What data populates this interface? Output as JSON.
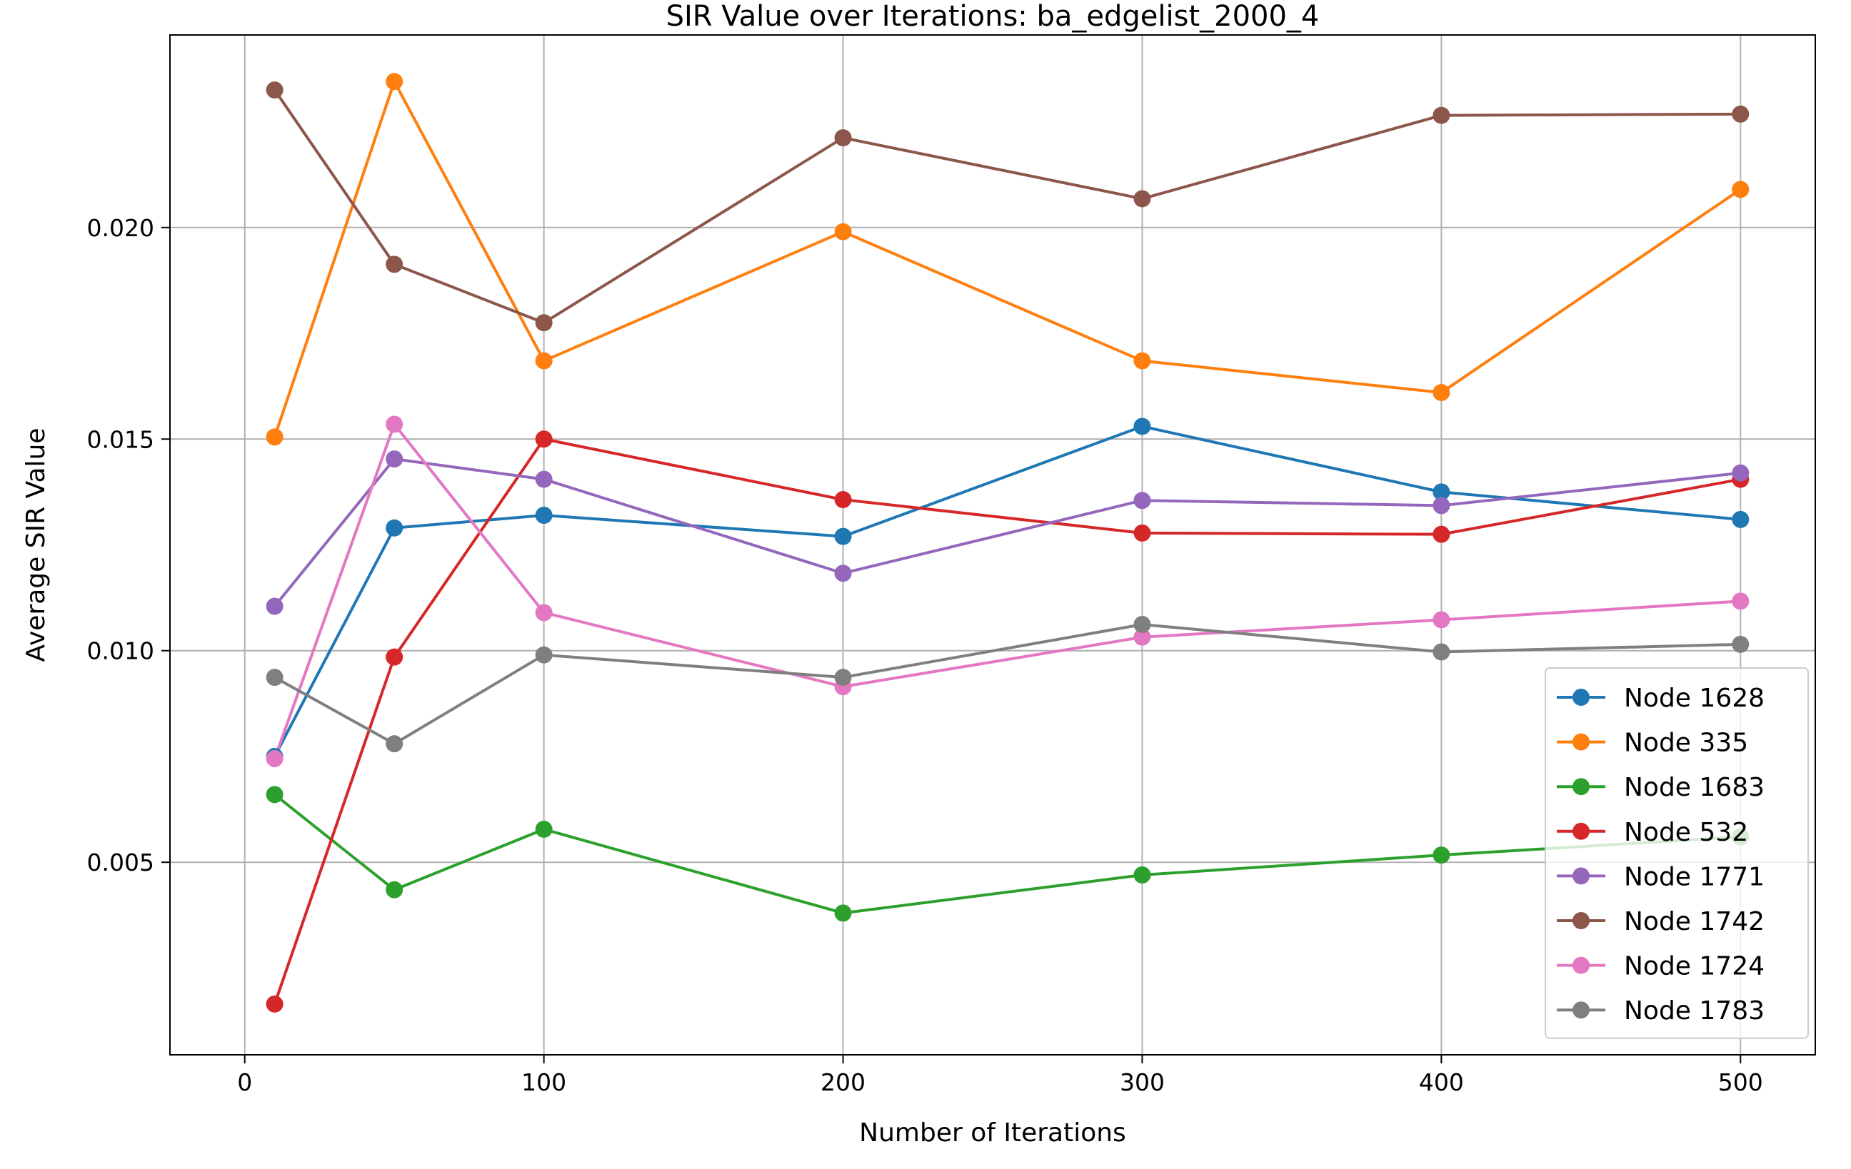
{
  "chart_data": {
    "type": "line",
    "title": "SIR Value over Iterations: ba_edgelist_2000_4",
    "xlabel": "Number of Iterations",
    "ylabel": "Average SIR Value",
    "x": [
      10,
      50,
      100,
      200,
      300,
      400,
      500
    ],
    "xlim": [
      -25,
      525
    ],
    "ylim": [
      0.00045,
      0.02455
    ],
    "xticks": [
      0,
      100,
      200,
      300,
      400,
      500
    ],
    "xtick_labels": [
      "0",
      "100",
      "200",
      "300",
      "400",
      "500"
    ],
    "yticks": [
      0.005,
      0.01,
      0.015,
      0.02
    ],
    "ytick_labels": [
      "0.005",
      "0.010",
      "0.015",
      "0.020"
    ],
    "grid": true,
    "legend_position": "lower-right",
    "series": [
      {
        "name": "Node 1628",
        "color": "#1f77b4",
        "values": [
          0.0075,
          0.0129,
          0.0132,
          0.0127,
          0.0153,
          0.01375,
          0.0131
        ]
      },
      {
        "name": "Node 335",
        "color": "#ff7f0e",
        "values": [
          0.01505,
          0.02345,
          0.01685,
          0.0199,
          0.01685,
          0.0161,
          0.0209
        ]
      },
      {
        "name": "Node 1683",
        "color": "#2ca02c",
        "values": [
          0.0066,
          0.00435,
          0.00578,
          0.0038,
          0.0047,
          0.00517,
          0.0056
        ]
      },
      {
        "name": "Node 532",
        "color": "#d62728",
        "values": [
          0.00165,
          0.00985,
          0.015,
          0.01357,
          0.01278,
          0.01275,
          0.01405
        ]
      },
      {
        "name": "Node 1771",
        "color": "#9467bd",
        "values": [
          0.01105,
          0.01453,
          0.01405,
          0.01183,
          0.01355,
          0.01343,
          0.0142
        ]
      },
      {
        "name": "Node 1742",
        "color": "#8c564b",
        "values": [
          0.02325,
          0.01913,
          0.01775,
          0.02212,
          0.02068,
          0.02265,
          0.02268
        ]
      },
      {
        "name": "Node 1724",
        "color": "#e377c2",
        "values": [
          0.00745,
          0.01535,
          0.0109,
          0.00915,
          0.01032,
          0.01073,
          0.01117
        ]
      },
      {
        "name": "Node 1783",
        "color": "#7f7f7f",
        "values": [
          0.00937,
          0.0078,
          0.0099,
          0.00937,
          0.01062,
          0.00997,
          0.01015
        ]
      }
    ]
  }
}
